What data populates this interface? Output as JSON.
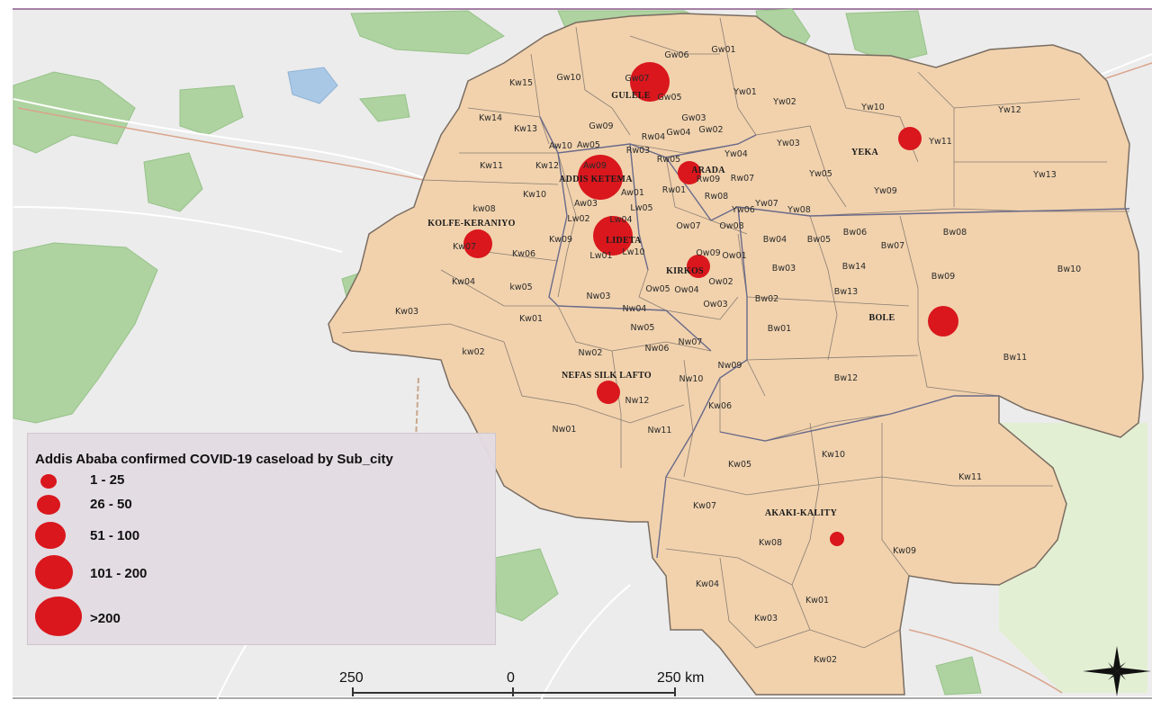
{
  "legend": {
    "title": "Addis Ababa confirmed COVID-19 caseload by Sub_city",
    "classes": [
      {
        "label": "1 - 25"
      },
      {
        "label": "26 - 50"
      },
      {
        "label": "51 - 100"
      },
      {
        "label": "101 - 200"
      },
      {
        "label": ">200"
      }
    ],
    "marker_color": "#d9171d"
  },
  "scale_bar": {
    "left": "250",
    "center": "0",
    "right": "250 km"
  },
  "subcities": [
    {
      "name": "GULELE",
      "class": 4
    },
    {
      "name": "ADDIS KETEMA",
      "class": 5
    },
    {
      "name": "ARADA",
      "class": 3
    },
    {
      "name": "YEKA",
      "class": 3
    },
    {
      "name": "KOLFE-KERANIYO",
      "class": 4
    },
    {
      "name": "LIDETA",
      "class": 5
    },
    {
      "name": "KIRKOS",
      "class": 3
    },
    {
      "name": "BOLE",
      "class": 4
    },
    {
      "name": "NEFAS SILK LAFTO",
      "class": 3
    },
    {
      "name": "AKAKI-KALITY",
      "class": 1
    }
  ],
  "woredas": [
    "Gw06",
    "Gw01",
    "Gw10",
    "Gw07",
    "Gw05",
    "Kw15",
    "Kw14",
    "Kw13",
    "Gw09",
    "Gw03",
    "Gw04",
    "Gw02",
    "Rw04",
    "Aw10",
    "Aw05",
    "Rw03",
    "Rw05",
    "Kw11",
    "Kw12",
    "Aw09",
    "Yw01",
    "Yw02",
    "Yw03",
    "Yw04",
    "Yw05",
    "Yw10",
    "Yw11",
    "Yw12",
    "Yw13",
    "Yw09",
    "Yw06",
    "Yw07",
    "Yw08",
    "Rw09",
    "Rw07",
    "Rw01",
    "Rw08",
    "Aw01",
    "Aw03",
    "Lw05",
    "Lw02",
    "Lw04",
    "Kw10",
    "kw08",
    "Kw07",
    "Kw09",
    "Kw06",
    "kw05",
    "Kw04",
    "Kw03",
    "Kw01",
    "kw02",
    "Lw01",
    "Lw10",
    "Ow07",
    "Ow08",
    "Ow09",
    "Ow01",
    "Ow05",
    "Ow04",
    "Ow02",
    "Ow03",
    "Bw04",
    "Bw05",
    "Bw06",
    "Bw07",
    "Bw08",
    "Bw03",
    "Bw14",
    "Bw09",
    "Bw10",
    "Bw13",
    "Bw02",
    "Bw01",
    "Bw11",
    "Bw12",
    "Nw03",
    "Nw04",
    "Nw05",
    "Nw06",
    "Nw07",
    "Nw02",
    "Nw09",
    "Nw10",
    "Nw12",
    "Nw01",
    "Nw11",
    "Kw06",
    "Kw05",
    "Kw10",
    "Kw11",
    "Kw07",
    "Kw08",
    "Kw09",
    "Kw04",
    "Kw01",
    "Kw03",
    "Kw02"
  ]
}
